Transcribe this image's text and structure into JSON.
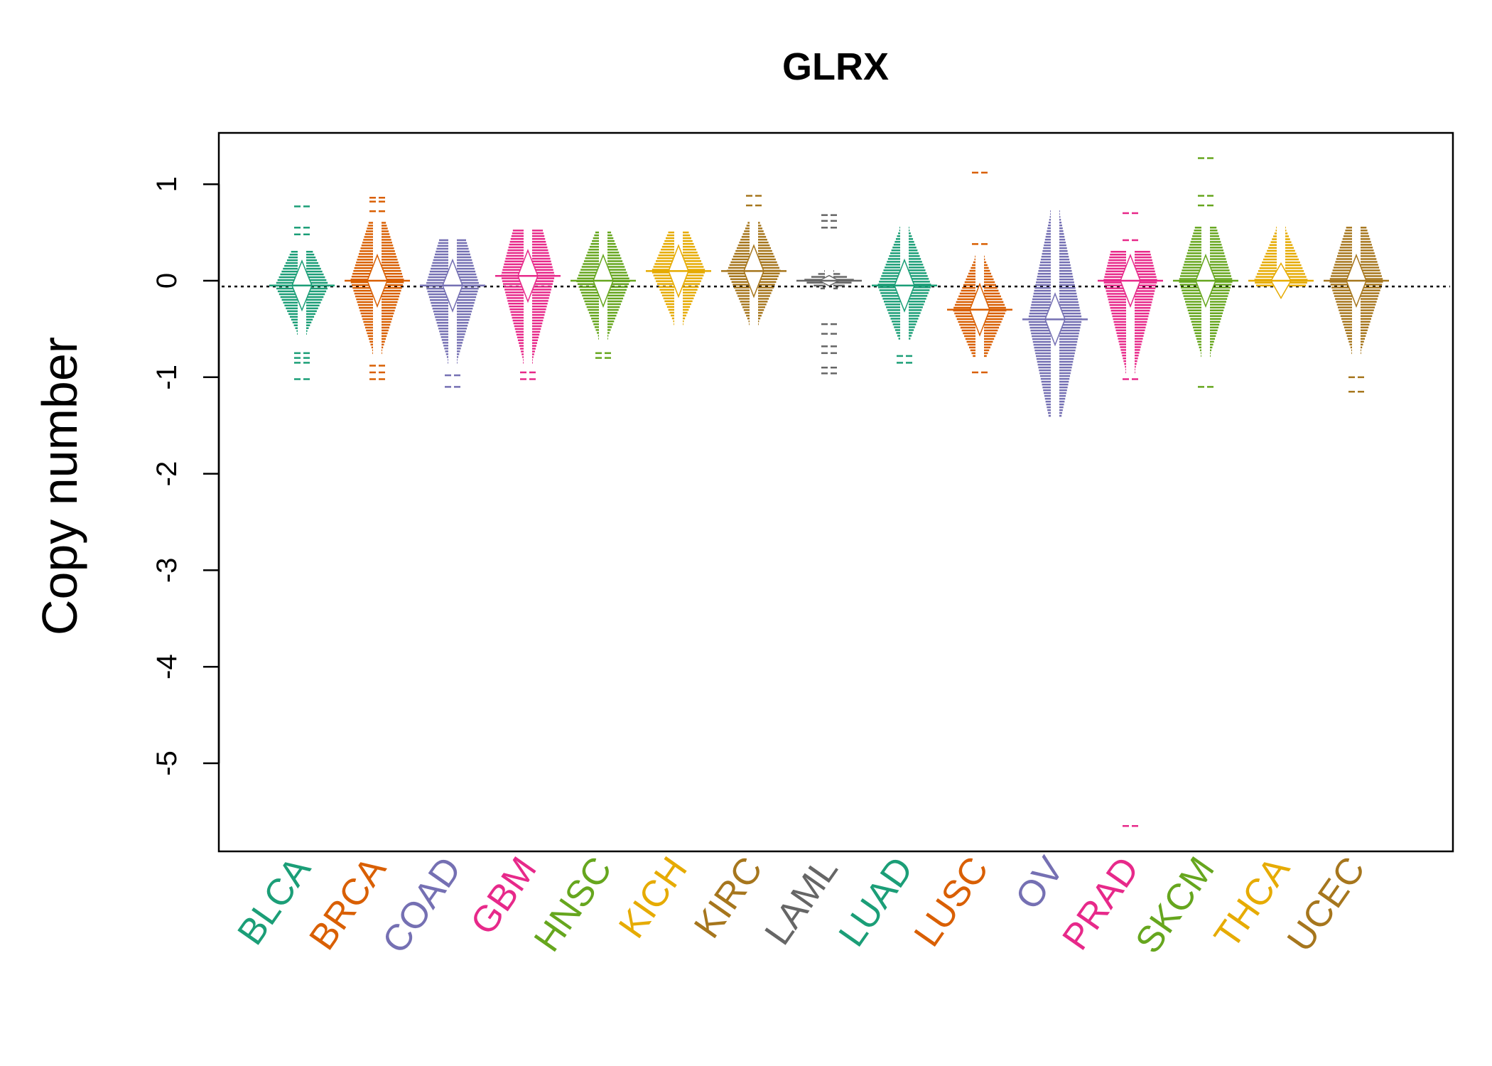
{
  "chart_data": {
    "type": "violin",
    "title": "GLRX",
    "xlabel": "",
    "ylabel": "Copy number",
    "ylim": [
      -5.9,
      1.55
    ],
    "yticks": [
      1,
      0,
      -1,
      -2,
      -3,
      -4,
      -5
    ],
    "reference_line": -0.06,
    "reference_line_style": "dotted",
    "grid": false,
    "legend": "none",
    "categories": [
      "BLCA",
      "BRCA",
      "COAD",
      "GBM",
      "HNSC",
      "KICH",
      "KIRC",
      "LAML",
      "LUAD",
      "LUSC",
      "OV",
      "PRAD",
      "SKCM",
      "THCA",
      "UCEC"
    ],
    "colors": [
      "#1B9E77",
      "#D95F02",
      "#7570B3",
      "#E7298A",
      "#66A61E",
      "#E6AB02",
      "#A6761D",
      "#666666",
      "#1B9E77",
      "#D95F02",
      "#7570B3",
      "#E7298A",
      "#66A61E",
      "#E6AB02",
      "#A6761D"
    ],
    "series": [
      {
        "category": "BLCA",
        "min": -1.02,
        "max": 0.77,
        "bulk": [
          -0.55,
          0.3
        ],
        "median": -0.05,
        "outliers": [
          -1.02,
          -0.85,
          -0.8,
          -0.75,
          0.48,
          0.55,
          0.77
        ]
      },
      {
        "category": "BRCA",
        "min": -1.02,
        "max": 0.86,
        "bulk": [
          -0.75,
          0.6
        ],
        "median": 0.0,
        "outliers": [
          -1.02,
          -0.95,
          -0.88,
          0.72,
          0.82,
          0.86
        ]
      },
      {
        "category": "COAD",
        "min": -1.1,
        "max": 0.44,
        "bulk": [
          -0.85,
          0.42
        ],
        "median": -0.05,
        "outliers": [
          -1.1,
          -0.98
        ]
      },
      {
        "category": "GBM",
        "min": -1.02,
        "max": 0.55,
        "bulk": [
          -0.85,
          0.52
        ],
        "median": 0.05,
        "outliers": [
          -1.02,
          -0.95
        ]
      },
      {
        "category": "HNSC",
        "min": -0.8,
        "max": 0.52,
        "bulk": [
          -0.6,
          0.5
        ],
        "median": 0.0,
        "outliers": [
          -0.8,
          -0.75
        ]
      },
      {
        "category": "KICH",
        "min": -0.5,
        "max": 0.55,
        "bulk": [
          -0.45,
          0.5
        ],
        "median": 0.1,
        "outliers": []
      },
      {
        "category": "KIRC",
        "min": -0.62,
        "max": 0.88,
        "bulk": [
          -0.45,
          0.6
        ],
        "median": 0.1,
        "outliers": [
          0.78,
          0.88
        ]
      },
      {
        "category": "LAML",
        "min": -0.96,
        "max": 0.68,
        "bulk": [
          -0.08,
          0.1
        ],
        "median": 0.0,
        "outliers": [
          -0.96,
          -0.9,
          -0.75,
          -0.68,
          -0.55,
          -0.45,
          0.55,
          0.62,
          0.68
        ]
      },
      {
        "category": "LUAD",
        "min": -0.85,
        "max": 0.56,
        "bulk": [
          -0.6,
          0.55
        ],
        "median": -0.05,
        "outliers": [
          -0.85,
          -0.78
        ]
      },
      {
        "category": "LUSC",
        "min": -0.95,
        "max": 1.12,
        "bulk": [
          -0.78,
          0.25
        ],
        "median": -0.3,
        "outliers": [
          -0.95,
          0.38,
          1.12
        ]
      },
      {
        "category": "OV",
        "min": -1.42,
        "max": 0.74,
        "bulk": [
          -1.4,
          0.72
        ],
        "median": -0.4,
        "outliers": []
      },
      {
        "category": "PRAD",
        "min": -5.65,
        "max": 0.7,
        "bulk": [
          -0.95,
          0.3
        ],
        "median": 0.0,
        "outliers": [
          -5.65,
          -1.02,
          0.42,
          0.7
        ]
      },
      {
        "category": "SKCM",
        "min": -1.1,
        "max": 1.27,
        "bulk": [
          -0.78,
          0.55
        ],
        "median": 0.0,
        "outliers": [
          -1.1,
          0.78,
          0.88,
          1.27
        ]
      },
      {
        "category": "THCA",
        "min": -0.05,
        "max": 0.55,
        "bulk": [
          -0.05,
          0.55
        ],
        "median": 0.0,
        "outliers": []
      },
      {
        "category": "UCEC",
        "min": -1.15,
        "max": 0.56,
        "bulk": [
          -0.75,
          0.55
        ],
        "median": 0.0,
        "outliers": [
          -1.15,
          -1.0
        ]
      }
    ]
  }
}
